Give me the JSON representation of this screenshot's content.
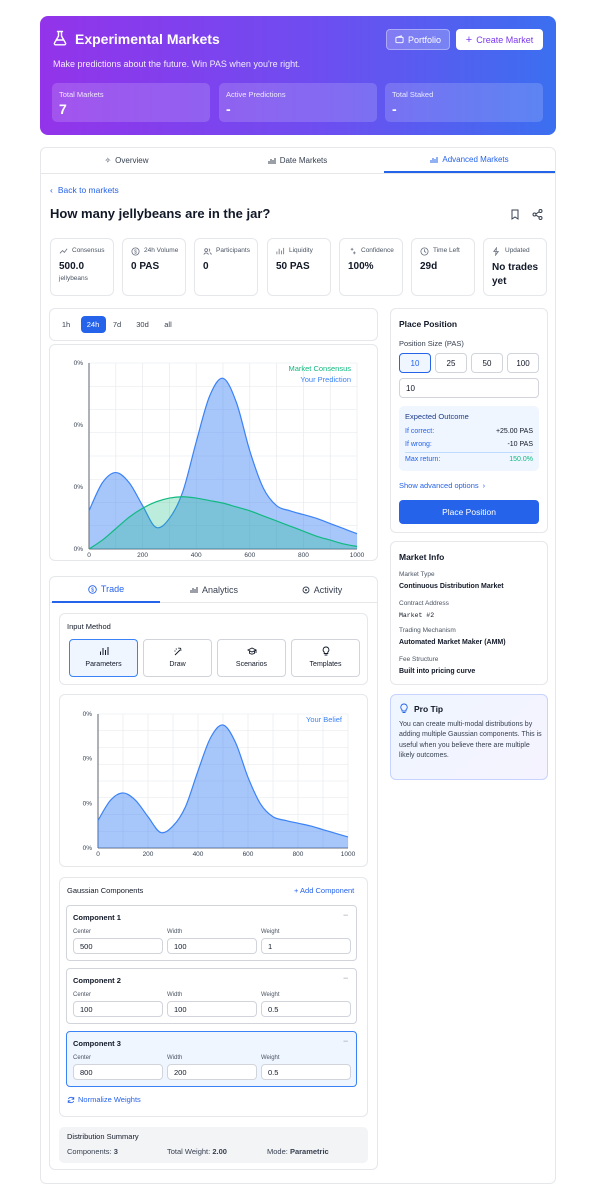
{
  "header": {
    "title": "Experimental Markets",
    "subtitle": "Make predictions about the future. Win PAS when you're right.",
    "portfolio_label": "Portfolio",
    "create_label": "Create Market",
    "stats": [
      {
        "label": "Total Markets",
        "value": "7"
      },
      {
        "label": "Active Predictions",
        "value": "-"
      },
      {
        "label": "Total Staked",
        "value": "-"
      }
    ]
  },
  "tabs": [
    {
      "label": "Overview",
      "icon": "sparkles-icon",
      "active": false
    },
    {
      "label": "Date Markets",
      "icon": "bar-chart-icon",
      "active": false
    },
    {
      "label": "Advanced Markets",
      "icon": "bar-chart-icon",
      "active": true
    }
  ],
  "back_label": "Back to markets",
  "question": "How many jellybeans are in the jar?",
  "metrics": [
    {
      "label": "Consensus",
      "value": "500.0",
      "unit": "jellybeans",
      "icon": "trend-icon"
    },
    {
      "label": "24h Volume",
      "value": "0 PAS",
      "unit": "",
      "icon": "dollar-icon"
    },
    {
      "label": "Participants",
      "value": "0",
      "unit": "",
      "icon": "users-icon"
    },
    {
      "label": "Liquidity",
      "value": "50 PAS",
      "unit": "",
      "icon": "bar-chart-icon"
    },
    {
      "label": "Confidence",
      "value": "100%",
      "unit": "",
      "icon": "sparkles-icon"
    },
    {
      "label": "Time Left",
      "value": "29d",
      "unit": "",
      "icon": "clock-icon"
    },
    {
      "label": "Updated",
      "value": "No trades yet",
      "unit": "",
      "icon": "bolt-icon"
    }
  ],
  "time_ranges": [
    "1h",
    "24h",
    "7d",
    "30d",
    "all"
  ],
  "time_range_selected": "24h",
  "trade_tabs": [
    {
      "label": "Trade",
      "icon": "dollar-icon",
      "active": true
    },
    {
      "label": "Analytics",
      "icon": "bar-chart-icon",
      "active": false
    },
    {
      "label": "Activity",
      "icon": "activity-icon",
      "active": false
    }
  ],
  "input_method": {
    "title": "Input Method",
    "options": [
      {
        "label": "Parameters",
        "icon": "bar-chart-icon",
        "active": true
      },
      {
        "label": "Draw",
        "icon": "wand-icon",
        "active": false
      },
      {
        "label": "Scenarios",
        "icon": "graduation-cap-icon",
        "active": false
      },
      {
        "label": "Templates",
        "icon": "lightbulb-icon",
        "active": false
      }
    ]
  },
  "gaussian": {
    "title": "Gaussian Components",
    "add_label": "+ Add Component",
    "field_labels": {
      "center": "Center",
      "width": "Width",
      "weight": "Weight"
    },
    "components": [
      {
        "name": "Component 1",
        "center": "500",
        "width": "100",
        "weight": "1"
      },
      {
        "name": "Component 2",
        "center": "100",
        "width": "100",
        "weight": "0.5"
      },
      {
        "name": "Component 3",
        "center": "800",
        "width": "200",
        "weight": "0.5"
      }
    ],
    "normalize_label": "Normalize Weights"
  },
  "summary": {
    "title": "Distribution Summary",
    "components_label": "Components:",
    "components_value": "3",
    "weight_label": "Total Weight:",
    "weight_value": "2.00",
    "mode_label": "Mode:",
    "mode_value": "Parametric"
  },
  "place_position": {
    "title": "Place Position",
    "size_label": "Position Size (PAS)",
    "presets": [
      "10",
      "25",
      "50",
      "100"
    ],
    "selected_preset": "10",
    "amount_value": "10",
    "outcome_title": "Expected Outcome",
    "rows": [
      {
        "label": "If correct:",
        "value": "+25.00 PAS"
      },
      {
        "label": "If wrong:",
        "value": "-10 PAS"
      },
      {
        "label": "Max return:",
        "value": "150.0%"
      }
    ],
    "advanced_label": "Show advanced options",
    "submit_label": "Place Position"
  },
  "market_info": {
    "title": "Market Info",
    "items": [
      {
        "label": "Market Type",
        "value": "Continuous Distribution Market"
      },
      {
        "label": "Contract Address",
        "value": "Market #2"
      },
      {
        "label": "Trading Mechanism",
        "value": "Automated Market Maker (AMM)"
      },
      {
        "label": "Fee Structure",
        "value": "Built into pricing curve"
      }
    ]
  },
  "pro_tip": {
    "title": "Pro Tip",
    "text": "You can create multi-modal distributions by adding multiple Gaussian components. This is useful when you believe there are multiple likely outcomes."
  },
  "colors": {
    "accent": "#2563eb",
    "consensus": "#10b981",
    "prediction": "#3b82f6",
    "purple": "#7c3aed"
  },
  "chart_data": [
    {
      "type": "area",
      "series": [
        {
          "name": "Market Consensus",
          "x": [
            0,
            50,
            100,
            150,
            200,
            250,
            300,
            350,
            400,
            450,
            500,
            550,
            600,
            650,
            700,
            750,
            800,
            850,
            900,
            950,
            1000
          ],
          "values": [
            0.0,
            0.07,
            0.16,
            0.25,
            0.32,
            0.37,
            0.4,
            0.41,
            0.4,
            0.38,
            0.36,
            0.33,
            0.3,
            0.26,
            0.22,
            0.18,
            0.14,
            0.1,
            0.07,
            0.04,
            0.02
          ]
        },
        {
          "name": "Your Prediction",
          "x": [
            0,
            50,
            100,
            150,
            200,
            250,
            300,
            350,
            400,
            450,
            500,
            550,
            600,
            650,
            700,
            750,
            800,
            850,
            900,
            950,
            1000
          ],
          "values": [
            0.3,
            0.52,
            0.6,
            0.52,
            0.34,
            0.17,
            0.24,
            0.45,
            0.84,
            1.2,
            1.34,
            1.15,
            0.77,
            0.48,
            0.34,
            0.3,
            0.27,
            0.24,
            0.2,
            0.16,
            0.12
          ]
        }
      ],
      "x_ticks": [
        "0",
        "200",
        "400",
        "600",
        "800",
        "1000"
      ],
      "y_ticks": [
        "0%",
        "0%",
        "0%",
        "0%"
      ],
      "xlim": [
        0,
        1000
      ]
    },
    {
      "type": "area",
      "series": [
        {
          "name": "Your Belief",
          "x": [
            0,
            50,
            100,
            150,
            200,
            250,
            300,
            350,
            400,
            450,
            500,
            550,
            600,
            650,
            700,
            750,
            800,
            850,
            900,
            950,
            1000
          ],
          "values": [
            0.3,
            0.52,
            0.6,
            0.52,
            0.34,
            0.17,
            0.24,
            0.45,
            0.84,
            1.2,
            1.34,
            1.15,
            0.77,
            0.48,
            0.34,
            0.3,
            0.27,
            0.24,
            0.2,
            0.16,
            0.12
          ]
        }
      ],
      "x_ticks": [
        "0",
        "200",
        "400",
        "600",
        "800",
        "1000"
      ],
      "y_ticks": [
        "0%",
        "0%",
        "0%",
        "0%"
      ],
      "xlim": [
        0,
        1000
      ]
    }
  ]
}
